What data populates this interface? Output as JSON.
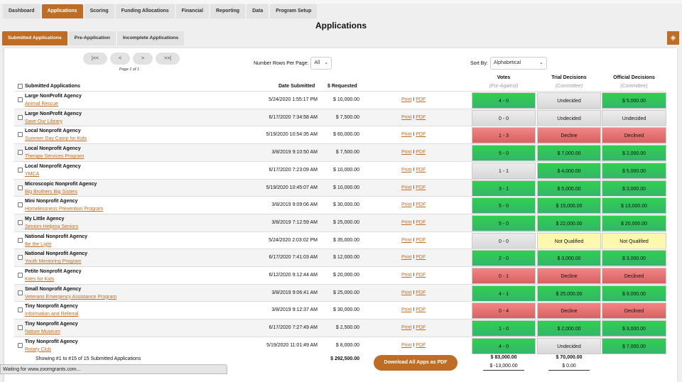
{
  "nav": {
    "tabs": [
      "Dashboard",
      "Applications",
      "Scoring",
      "Funding Allocations",
      "Financial",
      "Reporting",
      "Data",
      "Program Setup"
    ],
    "active": 1
  },
  "page_title": "Applications",
  "subtabs": {
    "items": [
      "Submitted Applications",
      "Pre-Application",
      "Incomplete Applications"
    ],
    "active": 0
  },
  "help_icon": "lightbulb-icon",
  "pager": {
    "first": "|<<",
    "prev": "<",
    "next": ">",
    "last": ">>|",
    "info": "Page 1 of 1"
  },
  "rows_per_page": {
    "label": "Number Rows Per Page:",
    "value": "All"
  },
  "sort_by": {
    "label": "Sort By:",
    "value": "Alphabetical"
  },
  "headers": {
    "name": "Submitted Applications",
    "date": "Date Submitted",
    "requested": "$ Requested",
    "votes": "Votes",
    "votes_sub": "(For-Against)",
    "trial": "Trial Decisions",
    "trial_sub": "(Committee)",
    "official": "Official Decisions",
    "official_sub": "(Committee)"
  },
  "links": {
    "print": "Print",
    "sep": "I",
    "pdf": "PDF"
  },
  "colors": {
    "accent": "#bf6c24",
    "green": "#2fd04e",
    "red": "#e87272",
    "gray": "#e2e2e2",
    "yellow": "#fcf8ae"
  },
  "rows": [
    {
      "org": "Large NonProfit Agency",
      "program": "Animal Rescue",
      "date": "5/24/2020 1:55:17 PM",
      "requested": "$ 10,000.00",
      "votes": "4 - 0",
      "votes_c": "green",
      "trial": "Undecided",
      "trial_c": "gray",
      "official": "$ 5,000.00",
      "official_c": "green"
    },
    {
      "org": "Large NonProfit Agency",
      "program": "Save Our Library",
      "date": "6/17/2020 7:34:58 AM",
      "requested": "$ 7,500.00",
      "votes": "0 - 0",
      "votes_c": "gray",
      "trial": "Undecided",
      "trial_c": "gray",
      "official": "Undecided",
      "official_c": "gray"
    },
    {
      "org": "Local Nonprofit Agency",
      "program": "Summer Day Camp for Kids",
      "date": "5/19/2020 10:54:35 AM",
      "requested": "$ 60,000.00",
      "votes": "1 - 3",
      "votes_c": "red",
      "trial": "Decline",
      "trial_c": "red",
      "official": "Declined",
      "official_c": "red"
    },
    {
      "org": "Local Nonprofit Agency",
      "program": "Therapy Services Program",
      "date": "3/8/2019 9:10:50 AM",
      "requested": "$ 7,500.00",
      "votes": "5 - 0",
      "votes_c": "green",
      "trial": "$ 7,000.00",
      "trial_c": "green",
      "official": "$ 2,000.00",
      "official_c": "green"
    },
    {
      "org": "Local Nonprofit Agency",
      "program": "YMCA",
      "date": "6/17/2020 7:23:09 AM",
      "requested": "$ 10,000.00",
      "votes": "1 - 1",
      "votes_c": "gray",
      "trial": "$ 4,000.00",
      "trial_c": "green",
      "official": "$ 5,000.00",
      "official_c": "green"
    },
    {
      "org": "Microscopic Nonprofit Agency",
      "program": "Big Brothers Big Sisters",
      "date": "5/19/2020 10:45:07 AM",
      "requested": "$ 10,000.00",
      "votes": "3 - 1",
      "votes_c": "green",
      "trial": "$ 5,000.00",
      "trial_c": "green",
      "official": "$ 3,000.00",
      "official_c": "green"
    },
    {
      "org": "Mini Nonprofit Agency",
      "program": "Homelessness Prevention Program",
      "date": "3/8/2019 9:09:06 AM",
      "requested": "$ 30,000.00",
      "votes": "5 - 0",
      "votes_c": "green",
      "trial": "$ 15,000.00",
      "trial_c": "green",
      "official": "$ 13,000.00",
      "official_c": "green"
    },
    {
      "org": "My Little Agency",
      "program": "Seniors Helping Seniors",
      "date": "3/8/2019 7:12:59 AM",
      "requested": "$ 25,000.00",
      "votes": "5 - 0",
      "votes_c": "green",
      "trial": "$ 22,000.00",
      "trial_c": "green",
      "official": "$ 20,000.00",
      "official_c": "green"
    },
    {
      "org": "National Nonprofit Agency",
      "program": "Be the Light",
      "date": "5/24/2020 2:03:02 PM",
      "requested": "$ 35,000.00",
      "votes": "0 - 0",
      "votes_c": "gray",
      "trial": "Not Qualified",
      "trial_c": "yellow",
      "official": "Not Qualified",
      "official_c": "yellow"
    },
    {
      "org": "National Nonprofit Agency",
      "program": "Youth Mentoring Program",
      "date": "6/17/2020 7:41:03 AM",
      "requested": "$ 12,000.00",
      "votes": "2 - 0",
      "votes_c": "green",
      "trial": "$ 3,000.00",
      "trial_c": "green",
      "official": "$ 3,000.00",
      "official_c": "green"
    },
    {
      "org": "Petite Nonprofit Agency",
      "program": "Kites for Kids",
      "date": "6/12/2020 9:12:44 AM",
      "requested": "$ 20,000.00",
      "votes": "0 - 1",
      "votes_c": "red",
      "trial": "Decline",
      "trial_c": "red",
      "official": "Declined",
      "official_c": "red"
    },
    {
      "org": "Small Nonprofit Agency",
      "program": "Veterans Emergency Assistance Program",
      "date": "3/8/2019 9:06:41 AM",
      "requested": "$ 25,000.00",
      "votes": "4 - 1",
      "votes_c": "green",
      "trial": "$ 25,000.00",
      "trial_c": "green",
      "official": "$ 9,000.00",
      "official_c": "green"
    },
    {
      "org": "Tiny Nonprofit Agency",
      "program": "Information and Referral",
      "date": "3/8/2019 9:12:37 AM",
      "requested": "$ 30,000.00",
      "votes": "0 - 4",
      "votes_c": "red",
      "trial": "Decline",
      "trial_c": "red",
      "official": "Declined",
      "official_c": "red"
    },
    {
      "org": "Tiny Nonprofit Agency",
      "program": "Nature Museum",
      "date": "6/17/2020 7:27:49 AM",
      "requested": "$ 2,500.00",
      "votes": "1 - 0",
      "votes_c": "green",
      "trial": "$ 2,000.00",
      "trial_c": "green",
      "official": "$ 3,000.00",
      "official_c": "green"
    },
    {
      "org": "Tiny Nonprofit Agency",
      "program": "Rotary Club",
      "date": "5/19/2020 11:01:49 AM",
      "requested": "$ 8,000.00",
      "votes": "4 - 0",
      "votes_c": "green",
      "trial": "Undecided",
      "trial_c": "gray",
      "official": "$ 7,000.00",
      "official_c": "green"
    }
  ],
  "footer": {
    "showing": "Showing #1 to #15 of 15  Submitted Applications",
    "total_requested": "$ 292,500.00",
    "download": "Download All Apps as PDF",
    "votes_total": "$ 83,000.00",
    "votes_diff": "$ -13,000.00",
    "trial_total": "$ 70,000.00",
    "trial_diff": "$ 0.00"
  },
  "status_bar": "Waiting for www.zoomgrants.com..."
}
